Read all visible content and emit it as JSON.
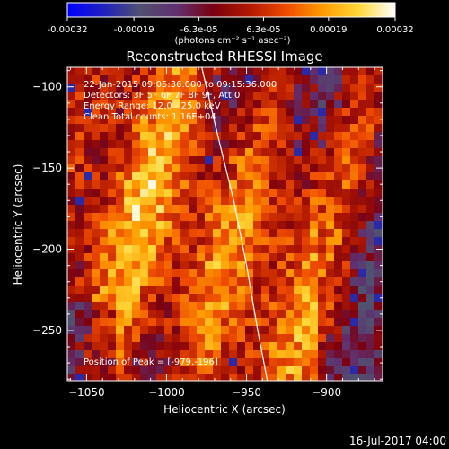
{
  "chart_data": {
    "type": "heatmap",
    "title": "Reconstructed RHESSI Image",
    "xlabel": "Heliocentric X (arcsec)",
    "ylabel": "Heliocentric Y (arcsec)",
    "xlim": [
      -1062,
      -865
    ],
    "ylim": [
      -281,
      -88
    ],
    "x_ticks": [
      -1050,
      -1000,
      -950,
      -900
    ],
    "x_tick_labels": [
      "−1050",
      "−1000",
      "−950",
      "−900"
    ],
    "y_ticks": [
      -100,
      -150,
      -200,
      -250
    ],
    "y_tick_labels": [
      "−100",
      "−150",
      "−200",
      "−250"
    ],
    "colorbar": {
      "range": [
        -0.00032,
        0.00032
      ],
      "tick_values": [
        -0.00032,
        -0.00019,
        -6.3e-05,
        6.3e-05,
        0.00019,
        0.00032
      ],
      "tick_labels": [
        "-0.00032",
        "-0.00019",
        "-6.3e-05",
        "6.3e-05",
        "0.00019",
        "0.00032"
      ],
      "units_label": "(photons cm⁻² s⁻¹ asec⁻²)",
      "colormap_stops": [
        "#0000ff",
        "#2020c0",
        "#505070",
        "#603070",
        "#7a0010",
        "#b01800",
        "#ee4a00",
        "#ff9a00",
        "#ffd838",
        "#ffffff"
      ]
    },
    "annotations": [
      "22-Jan-2015 09:05:36.000 to 09:15:36.000",
      "Detectors: 3F 5F 6F 7F 8F 9F, Att 0",
      "Energy Range: 12.0 - 25.0 keV",
      "Clean    Total counts: 1.16E+04"
    ],
    "peak_label": "Position of Peak = [-979,-196]",
    "peak_position": [
      -979,
      -196
    ],
    "limb_curve": [
      [
        -978,
        -88
      ],
      [
        -968,
        -130
      ],
      [
        -958,
        -170
      ],
      [
        -950,
        -210
      ],
      [
        -943,
        -250
      ],
      [
        -937,
        -281
      ]
    ],
    "limb_color": "#ffffff"
  },
  "footer": {
    "date": "16-Jul-2017 04:00"
  }
}
